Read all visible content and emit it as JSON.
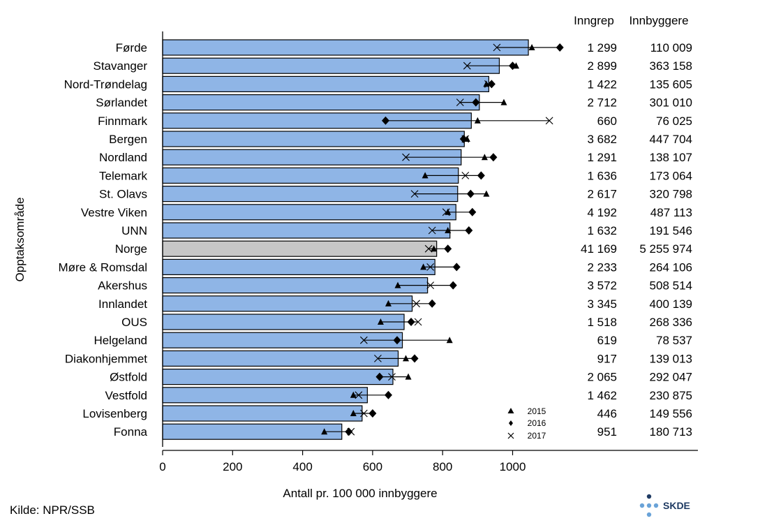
{
  "chart_data": {
    "type": "bar",
    "xlabel": "Antall pr. 100 000 innbyggere",
    "ylabel": "Opptaksområde",
    "xlim": [
      0,
      1100
    ],
    "xticks": [
      0,
      200,
      400,
      600,
      800,
      1000
    ],
    "table_headers": [
      "Inngrep",
      "Innbyggere"
    ],
    "source": "Kilde: NPR/SSB",
    "logo_text": "SKDE",
    "colors": {
      "bar": "#8fb5e6",
      "highlight": "#c7c7c7",
      "edge": "#000000"
    },
    "legend": [
      {
        "symbol": "triangle",
        "label": "2015"
      },
      {
        "symbol": "diamond",
        "label": "2016"
      },
      {
        "symbol": "cross",
        "label": "2017"
      }
    ],
    "rows": [
      {
        "name": "Førde",
        "value": 1045,
        "y2015": 1055,
        "y2016": 1135,
        "y2017": 955,
        "inngrep": "1 299",
        "innbyggere": "110 009"
      },
      {
        "name": "Stavanger",
        "value": 962,
        "y2015": 1010,
        "y2016": 1000,
        "y2017": 870,
        "inngrep": "2 899",
        "innbyggere": "363 158"
      },
      {
        "name": "Nord-Trøndelag",
        "value": 932,
        "y2015": 925,
        "y2016": 940,
        "y2017": 930,
        "inngrep": "1 422",
        "innbyggere": "135 605"
      },
      {
        "name": "Sørlandet",
        "value": 905,
        "y2015": 975,
        "y2016": 895,
        "y2017": 850,
        "inngrep": "2 712",
        "innbyggere": "301 010"
      },
      {
        "name": "Finnmark",
        "value": 882,
        "y2015": 900,
        "y2016": 637,
        "y2017": 1105,
        "inngrep": "660",
        "innbyggere": "76 025"
      },
      {
        "name": "Bergen",
        "value": 862,
        "y2015": 870,
        "y2016": 860,
        "y2017": 865,
        "inngrep": "3 682",
        "innbyggere": "447 704"
      },
      {
        "name": "Nordland",
        "value": 853,
        "y2015": 920,
        "y2016": 945,
        "y2017": 695,
        "inngrep": "1 291",
        "innbyggere": "138 107"
      },
      {
        "name": "Telemark",
        "value": 845,
        "y2015": 750,
        "y2016": 910,
        "y2017": 865,
        "inngrep": "1 636",
        "innbyggere": "173 064"
      },
      {
        "name": "St. Olavs",
        "value": 843,
        "y2015": 925,
        "y2016": 880,
        "y2017": 720,
        "inngrep": "2 617",
        "innbyggere": "320 798"
      },
      {
        "name": "Vestre Viken",
        "value": 838,
        "y2015": 815,
        "y2016": 885,
        "y2017": 810,
        "inngrep": "4 192",
        "innbyggere": "487 113"
      },
      {
        "name": "UNN",
        "value": 821,
        "y2015": 815,
        "y2016": 875,
        "y2017": 770,
        "inngrep": "1 632",
        "innbyggere": "191 546"
      },
      {
        "name": "Norge",
        "value": 783,
        "y2015": 775,
        "y2016": 815,
        "y2017": 760,
        "inngrep": "41 169",
        "innbyggere": "5 255 974",
        "highlight": true
      },
      {
        "name": "Møre & Romsdal",
        "value": 778,
        "y2015": 745,
        "y2016": 840,
        "y2017": 765,
        "inngrep": "2 233",
        "innbyggere": "264 106"
      },
      {
        "name": "Akershus",
        "value": 757,
        "y2015": 672,
        "y2016": 830,
        "y2017": 765,
        "inngrep": "3 572",
        "innbyggere": "508 514"
      },
      {
        "name": "Innlandet",
        "value": 713,
        "y2015": 645,
        "y2016": 770,
        "y2017": 725,
        "inngrep": "3 345",
        "innbyggere": "400 139"
      },
      {
        "name": "OUS",
        "value": 690,
        "y2015": 623,
        "y2016": 710,
        "y2017": 730,
        "inngrep": "1 518",
        "innbyggere": "268 336"
      },
      {
        "name": "Helgeland",
        "value": 685,
        "y2015": 820,
        "y2016": 670,
        "y2017": 575,
        "inngrep": "619",
        "innbyggere": "78 537"
      },
      {
        "name": "Diakonhjemmet",
        "value": 673,
        "y2015": 695,
        "y2016": 720,
        "y2017": 615,
        "inngrep": "917",
        "innbyggere": "139 013"
      },
      {
        "name": "Østfold",
        "value": 658,
        "y2015": 702,
        "y2016": 620,
        "y2017": 655,
        "inngrep": "2 065",
        "innbyggere": "292 047"
      },
      {
        "name": "Vestfold",
        "value": 585,
        "y2015": 545,
        "y2016": 645,
        "y2017": 560,
        "inngrep": "1 462",
        "innbyggere": "230 875"
      },
      {
        "name": "Lovisenberg",
        "value": 570,
        "y2015": 545,
        "y2016": 600,
        "y2017": 575,
        "inngrep": "446",
        "innbyggere": "149 556"
      },
      {
        "name": "Fonna",
        "value": 512,
        "y2015": 462,
        "y2016": 532,
        "y2017": 538,
        "inngrep": "951",
        "innbyggere": "180 713"
      }
    ]
  }
}
